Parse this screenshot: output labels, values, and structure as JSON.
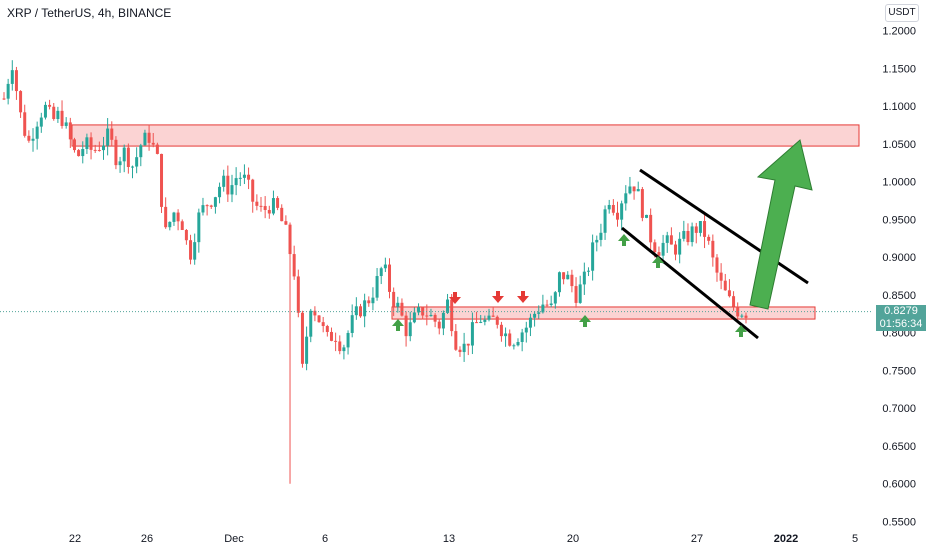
{
  "header": {
    "title": "XRP / TetherUS, 4h, BINANCE"
  },
  "currency": "USDT",
  "last_price": {
    "value": "0.8279",
    "countdown": "01:56:34"
  },
  "colors": {
    "up": "#26a69a",
    "down": "#ef5350",
    "zone_fill": "#fbd3d3",
    "zone_border": "#e53935",
    "arrow_up": "#43a047",
    "arrow_down": "#e53935",
    "big_arrow": "#4caf50",
    "last_price": "#52a49a"
  },
  "chart_data": {
    "type": "candlestick",
    "symbol": "XRP/USDT",
    "timeframe": "4h",
    "exchange": "BINANCE",
    "ylim": [
      0.54,
      1.23
    ],
    "y_ticks": [
      "1.2000",
      "1.1500",
      "1.1000",
      "1.0500",
      "1.0000",
      "0.9500",
      "0.9000",
      "0.8500",
      "0.8000",
      "0.7500",
      "0.7000",
      "0.6500",
      "0.6000",
      "0.5500"
    ],
    "x_ticks": [
      {
        "label": "22",
        "bold": false
      },
      {
        "label": "26",
        "bold": false
      },
      {
        "label": "Dec",
        "bold": false
      },
      {
        "label": "6",
        "bold": false
      },
      {
        "label": "13",
        "bold": false
      },
      {
        "label": "20",
        "bold": false
      },
      {
        "label": "27",
        "bold": false
      },
      {
        "label": "2022",
        "bold": true
      },
      {
        "label": "5",
        "bold": false
      }
    ],
    "close_path": [
      1.11,
      1.16,
      1.09,
      1.05,
      1.08,
      1.1,
      1.08,
      1.09,
      1.06,
      1.03,
      1.05,
      1.04,
      1.05,
      1.06,
      1.03,
      1.04,
      1.02,
      1.05,
      1.06,
      1.03,
      0.93,
      0.96,
      0.95,
      0.9,
      0.95,
      0.97,
      0.98,
      1.0,
      0.99,
      1.01,
      1.0,
      0.97,
      0.96,
      0.97,
      0.96,
      0.93,
      0.88,
      0.75,
      0.84,
      0.82,
      0.79,
      0.8,
      0.78,
      0.81,
      0.83,
      0.84,
      0.86,
      0.89,
      0.85,
      0.83,
      0.8,
      0.82,
      0.83,
      0.82,
      0.81,
      0.84,
      0.79,
      0.78,
      0.8,
      0.82,
      0.81,
      0.82,
      0.8,
      0.79,
      0.8,
      0.81,
      0.83,
      0.84,
      0.83,
      0.88,
      0.87,
      0.85,
      0.87,
      0.91,
      0.94,
      0.98,
      0.96,
      0.99,
      1.0,
      0.97,
      0.93,
      0.91,
      0.92,
      0.91,
      0.92,
      0.93,
      0.94,
      0.93,
      0.89,
      0.86,
      0.84,
      0.83,
      0.8279
    ],
    "resistance_zone": [
      1.047,
      1.075
    ],
    "support_zone": [
      0.818,
      0.834
    ],
    "spike_low": 0.6,
    "last_price": 0.8279,
    "grid": false
  }
}
